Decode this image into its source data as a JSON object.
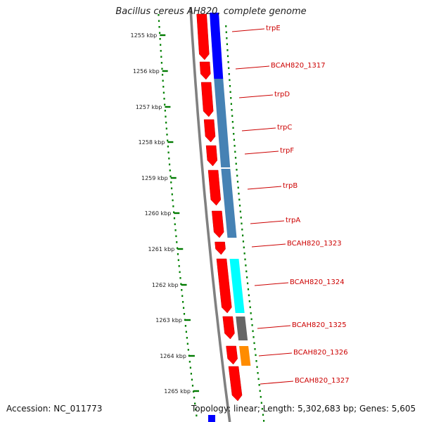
{
  "title": "Bacillus cereus AH820, complete genome",
  "footer": {
    "accession": "Accession: NC_011773",
    "summary": "Topology: linear; Length: 5,302,683 bp; Genes: 5,605"
  },
  "colors": {
    "cds": "#ff0000",
    "backbone": "#808080",
    "ruler_dots": "#008000",
    "tick": "#007a00",
    "label": "#cc0000",
    "trp_operon": "#4682b4",
    "trpE": "#0000ff",
    "cyan": "#00ffff",
    "gray": "#666666",
    "orange": "#ff8c00"
  },
  "ruler": [
    {
      "label": "1255 kbp",
      "kbp": 1255
    },
    {
      "label": "1256 kbp",
      "kbp": 1256
    },
    {
      "label": "1257 kbp",
      "kbp": 1257
    },
    {
      "label": "1258 kbp",
      "kbp": 1258
    },
    {
      "label": "1259 kbp",
      "kbp": 1259
    },
    {
      "label": "1260 kbp",
      "kbp": 1260
    },
    {
      "label": "1261 kbp",
      "kbp": 1261
    },
    {
      "label": "1262 kbp",
      "kbp": 1262
    },
    {
      "label": "1263 kbp",
      "kbp": 1263
    },
    {
      "label": "1264 kbp",
      "kbp": 1264
    },
    {
      "label": "1265 kbp",
      "kbp": 1265
    }
  ],
  "genes": [
    {
      "name": "trpE"
    },
    {
      "name": "BCAH820_1317"
    },
    {
      "name": "trpD"
    },
    {
      "name": "trpC"
    },
    {
      "name": "trpF"
    },
    {
      "name": "trpB"
    },
    {
      "name": "trpA"
    },
    {
      "name": "BCAH820_1323"
    },
    {
      "name": "BCAH820_1324"
    },
    {
      "name": "BCAH820_1325"
    },
    {
      "name": "BCAH820_1326"
    },
    {
      "name": "BCAH820_1327"
    }
  ]
}
